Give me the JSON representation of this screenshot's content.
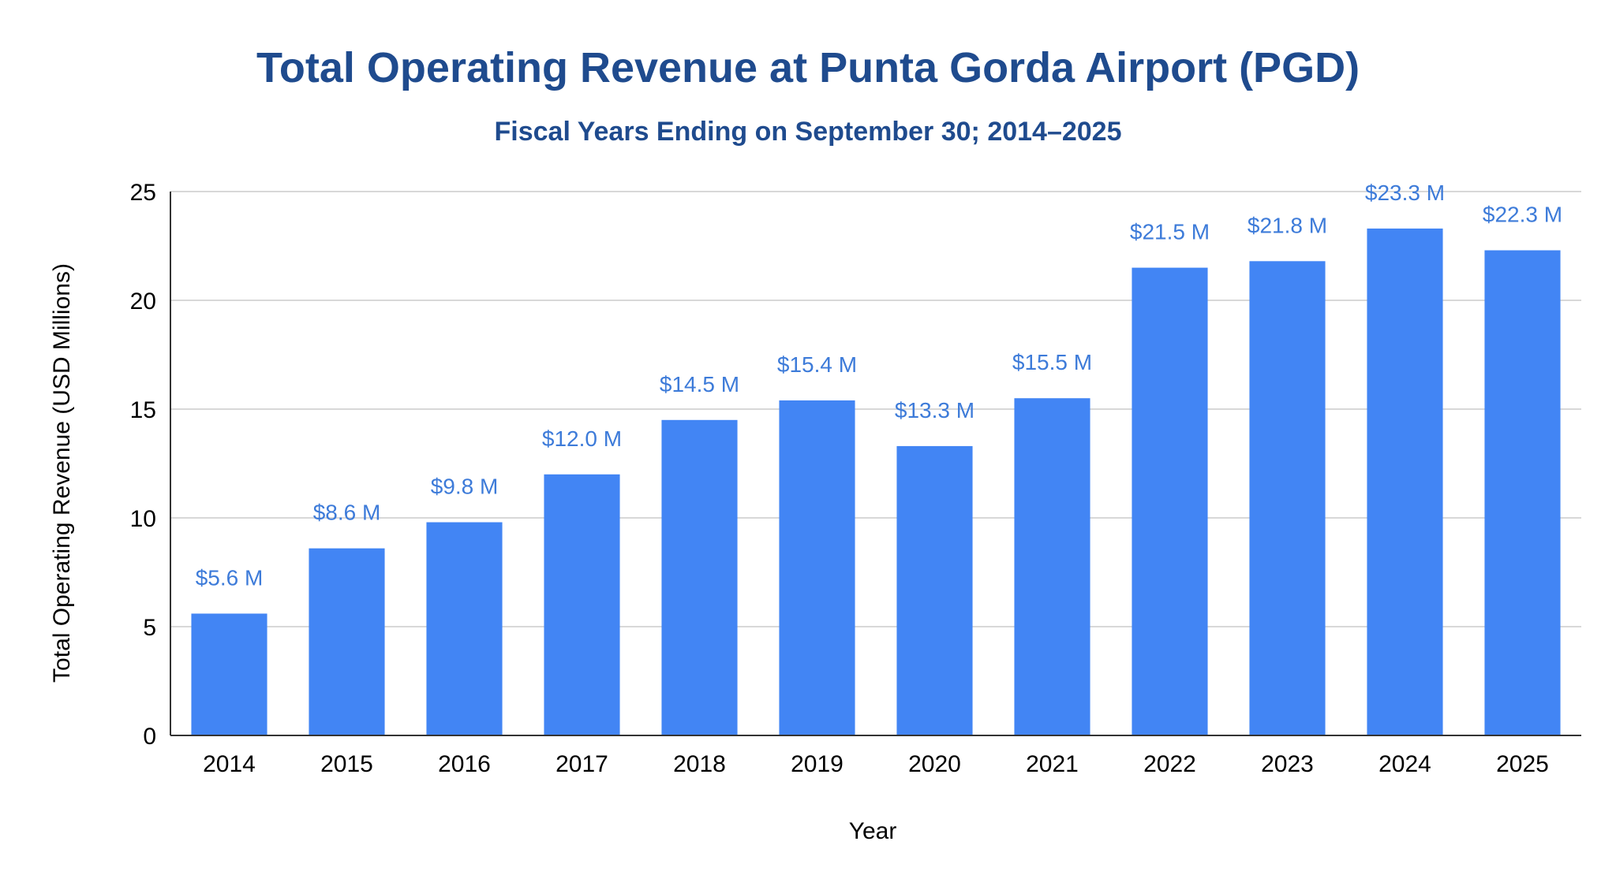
{
  "chart_data": {
    "type": "bar",
    "title": "Total Operating Revenue at Punta Gorda Airport (PGD)",
    "subtitle": "Fiscal Years Ending on September 30; 2014–2025",
    "xlabel": "Year",
    "ylabel": "Total Operating Revenue (USD Millions)",
    "ylim": [
      0,
      25
    ],
    "yticks": [
      "0",
      "5",
      "10",
      "15",
      "20",
      "25"
    ],
    "grid": true,
    "legend": "none",
    "categories": [
      "2014",
      "2015",
      "2016",
      "2017",
      "2018",
      "2019",
      "2020",
      "2021",
      "2022",
      "2023",
      "2024",
      "2025"
    ],
    "values": [
      5.6,
      8.6,
      9.8,
      12.0,
      14.5,
      15.4,
      13.3,
      15.5,
      21.5,
      21.8,
      23.3,
      22.3
    ],
    "data_labels": [
      "$5.6 M",
      "$8.6 M",
      "$9.8 M",
      "$12.0 M",
      "$14.5 M",
      "$15.4 M",
      "$13.3 M",
      "$15.5 M",
      "$21.5 M",
      "$21.8 M",
      "$23.3 M",
      "$22.3 M"
    ],
    "colors": {
      "bar": "#4285F4",
      "data_label": "#3D7BD9",
      "title": "#1F4B8E",
      "axis_text": "#000000",
      "grid": "#CCCCCC",
      "axis_line": "#333333"
    }
  }
}
